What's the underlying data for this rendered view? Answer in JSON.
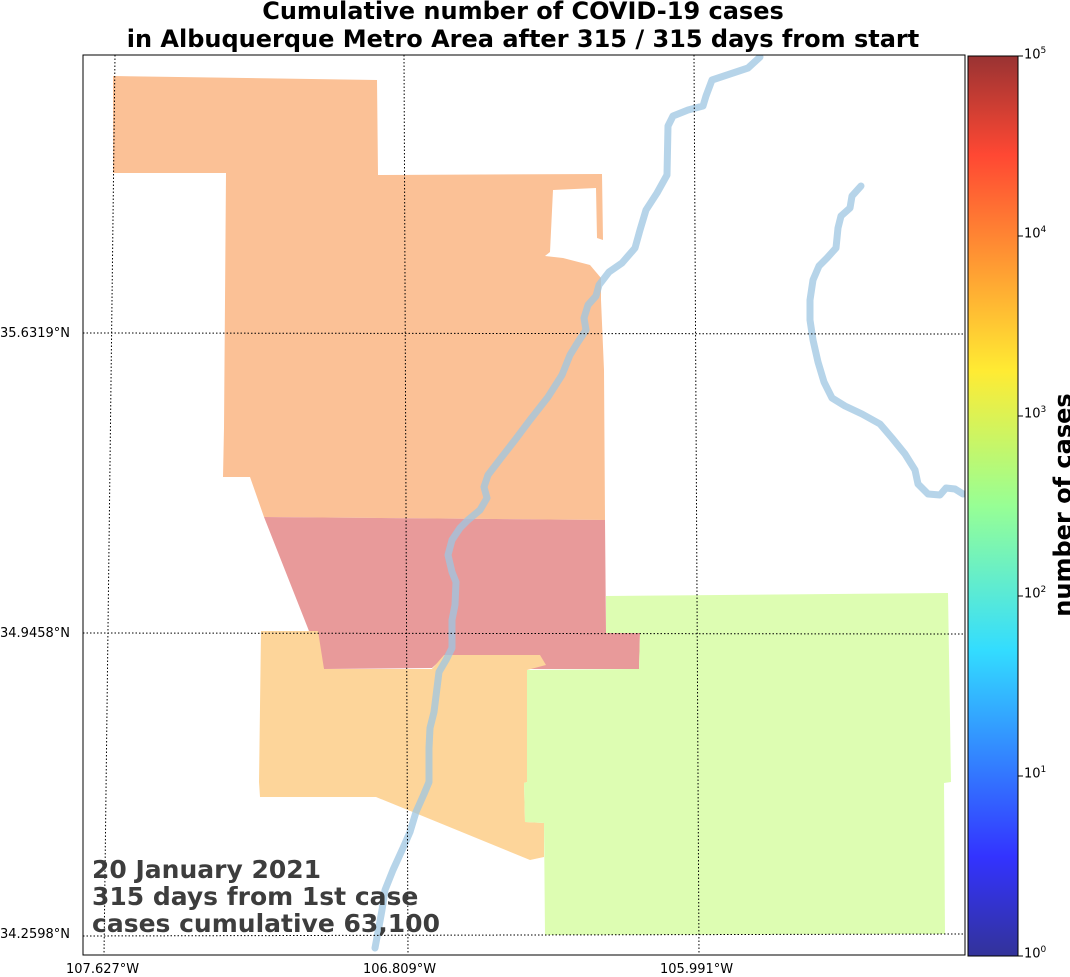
{
  "title": {
    "line1": "Cumulative number of COVID-19 cases",
    "line2": "in Albuquerque Metro Area after 315 / 315 days from start"
  },
  "annotation": {
    "date": "20 January 2021",
    "days": "315 days from 1st case",
    "cases": "cases cumulative 63,100"
  },
  "axes": {
    "lat_ticks": [
      "35.6319°N",
      "34.9458°N",
      "34.2598°N"
    ],
    "lon_ticks": [
      "107.627°W",
      "106.809°W",
      "105.991°W"
    ]
  },
  "colorbar": {
    "label": "number of cases",
    "scale": "log",
    "colormap": "jet",
    "ticks": [
      {
        "base": "10",
        "exp": "0"
      },
      {
        "base": "10",
        "exp": "1"
      },
      {
        "base": "10",
        "exp": "2"
      },
      {
        "base": "10",
        "exp": "3"
      },
      {
        "base": "10",
        "exp": "4"
      },
      {
        "base": "10",
        "exp": "5"
      }
    ]
  },
  "colors": {
    "region_north": "#fbc196",
    "region_center": "#e89a9a",
    "region_southwest": "#fdd59a",
    "region_southeast": "#ddfdb2",
    "river": "#9ec6e2",
    "grid": "#000000"
  },
  "legend_note": "regions colored by cumulative case count on log scale"
}
